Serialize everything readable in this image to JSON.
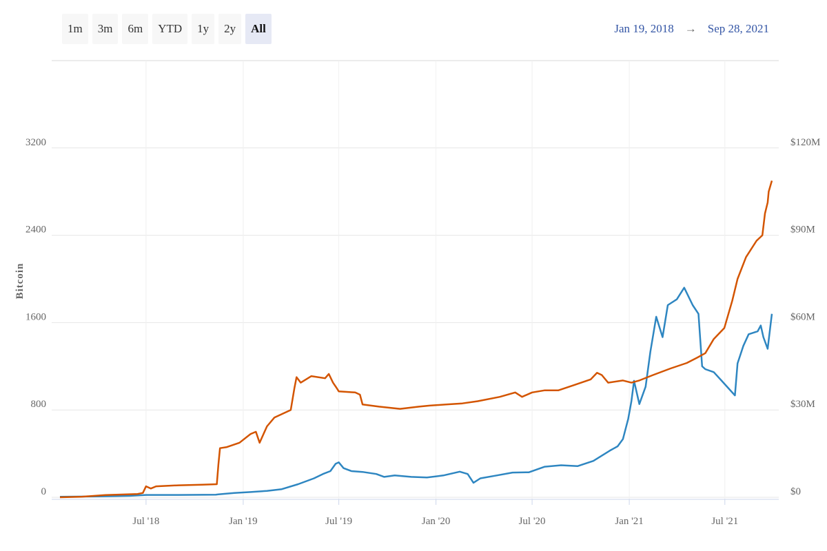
{
  "toolbar": {
    "ranges": [
      "1m",
      "3m",
      "6m",
      "YTD",
      "1y",
      "2y",
      "All"
    ],
    "active_range": "All"
  },
  "date_range": {
    "start": "Jan 19, 2018",
    "arrow": "→",
    "end": "Sep 28, 2021"
  },
  "chart_data": {
    "type": "line",
    "title": "",
    "xlabel": "",
    "ylabel": "Bitcoin",
    "xlim": [
      "2018-01-19",
      "2021-09-28"
    ],
    "x_ticks": [
      {
        "date": "2018-07-01",
        "label": "Jul '18"
      },
      {
        "date": "2019-01-01",
        "label": "Jan '19"
      },
      {
        "date": "2019-07-01",
        "label": "Jul '19"
      },
      {
        "date": "2020-01-01",
        "label": "Jan '20"
      },
      {
        "date": "2020-07-01",
        "label": "Jul '20"
      },
      {
        "date": "2021-01-01",
        "label": "Jan '21"
      },
      {
        "date": "2021-07-01",
        "label": "Jul '21"
      }
    ],
    "y_left": {
      "ylim": [
        0,
        4000
      ],
      "ticks": [
        0,
        800,
        1600,
        2400,
        3200
      ],
      "tick_labels": [
        "0",
        "800",
        "1600",
        "2400",
        "3200"
      ]
    },
    "y_right": {
      "ylim": [
        0,
        150
      ],
      "unit": "millions USD",
      "ticks": [
        0,
        30,
        60,
        90,
        120
      ],
      "tick_labels": [
        "$0",
        "$30M",
        "$60M",
        "$90M",
        "$120M"
      ]
    },
    "grid": true,
    "series": [
      {
        "axis": "left",
        "color": "#d35400",
        "points": [
          [
            "2018-01-19",
            0
          ],
          [
            "2018-03-01",
            5
          ],
          [
            "2018-04-15",
            20
          ],
          [
            "2018-06-15",
            30
          ],
          [
            "2018-06-25",
            40
          ],
          [
            "2018-07-01",
            100
          ],
          [
            "2018-07-10",
            80
          ],
          [
            "2018-07-20",
            100
          ],
          [
            "2018-09-01",
            110
          ],
          [
            "2018-10-15",
            115
          ],
          [
            "2018-11-12",
            120
          ],
          [
            "2018-11-15",
            300
          ],
          [
            "2018-11-18",
            450
          ],
          [
            "2018-12-01",
            460
          ],
          [
            "2018-12-25",
            500
          ],
          [
            "2019-01-15",
            580
          ],
          [
            "2019-01-25",
            600
          ],
          [
            "2019-02-01",
            500
          ],
          [
            "2019-02-15",
            650
          ],
          [
            "2019-03-01",
            730
          ],
          [
            "2019-04-01",
            800
          ],
          [
            "2019-04-08",
            1000
          ],
          [
            "2019-04-12",
            1100
          ],
          [
            "2019-04-20",
            1050
          ],
          [
            "2019-05-10",
            1110
          ],
          [
            "2019-06-05",
            1090
          ],
          [
            "2019-06-12",
            1130
          ],
          [
            "2019-06-20",
            1050
          ],
          [
            "2019-06-27",
            1000
          ],
          [
            "2019-07-01",
            970
          ],
          [
            "2019-08-01",
            960
          ],
          [
            "2019-08-10",
            940
          ],
          [
            "2019-08-15",
            850
          ],
          [
            "2019-09-15",
            830
          ],
          [
            "2019-10-25",
            810
          ],
          [
            "2019-11-30",
            830
          ],
          [
            "2019-12-20",
            840
          ],
          [
            "2020-01-20",
            850
          ],
          [
            "2020-02-20",
            860
          ],
          [
            "2020-03-20",
            880
          ],
          [
            "2020-05-01",
            920
          ],
          [
            "2020-05-30",
            960
          ],
          [
            "2020-06-12",
            920
          ],
          [
            "2020-07-01",
            960
          ],
          [
            "2020-07-25",
            980
          ],
          [
            "2020-08-20",
            980
          ],
          [
            "2020-09-20",
            1030
          ],
          [
            "2020-10-20",
            1080
          ],
          [
            "2020-11-01",
            1140
          ],
          [
            "2020-11-10",
            1120
          ],
          [
            "2020-11-22",
            1050
          ],
          [
            "2020-12-20",
            1070
          ],
          [
            "2021-01-05",
            1050
          ],
          [
            "2021-01-20",
            1070
          ],
          [
            "2021-02-15",
            1120
          ],
          [
            "2021-03-20",
            1180
          ],
          [
            "2021-04-20",
            1230
          ],
          [
            "2021-05-10",
            1280
          ],
          [
            "2021-05-25",
            1320
          ],
          [
            "2021-06-10",
            1450
          ],
          [
            "2021-06-30",
            1550
          ],
          [
            "2021-07-15",
            1800
          ],
          [
            "2021-07-25",
            2000
          ],
          [
            "2021-08-10",
            2200
          ],
          [
            "2021-08-30",
            2350
          ],
          [
            "2021-09-10",
            2400
          ],
          [
            "2021-09-15",
            2600
          ],
          [
            "2021-09-20",
            2700
          ],
          [
            "2021-09-22",
            2800
          ],
          [
            "2021-09-28",
            2900
          ]
        ]
      },
      {
        "axis": "right",
        "color": "#2e86c1",
        "points": [
          [
            "2018-01-19",
            0.2
          ],
          [
            "2018-04-01",
            0.3
          ],
          [
            "2018-06-01",
            0.5
          ],
          [
            "2018-07-01",
            0.8
          ],
          [
            "2018-09-01",
            0.8
          ],
          [
            "2018-11-10",
            0.9
          ],
          [
            "2018-11-15",
            1.0
          ],
          [
            "2018-12-15",
            1.5
          ],
          [
            "2019-01-15",
            1.8
          ],
          [
            "2019-02-15",
            2.2
          ],
          [
            "2019-03-15",
            2.8
          ],
          [
            "2019-04-15",
            4.5
          ],
          [
            "2019-05-15",
            6.5
          ],
          [
            "2019-06-01",
            8.0
          ],
          [
            "2019-06-15",
            9.0
          ],
          [
            "2019-06-25",
            11.5
          ],
          [
            "2019-07-01",
            12.0
          ],
          [
            "2019-07-10",
            10.0
          ],
          [
            "2019-07-25",
            9.0
          ],
          [
            "2019-08-15",
            8.7
          ],
          [
            "2019-09-10",
            8.0
          ],
          [
            "2019-09-25",
            7.0
          ],
          [
            "2019-10-15",
            7.5
          ],
          [
            "2019-11-15",
            7.0
          ],
          [
            "2019-12-15",
            6.8
          ],
          [
            "2020-01-15",
            7.5
          ],
          [
            "2020-02-15",
            8.8
          ],
          [
            "2020-03-01",
            8.0
          ],
          [
            "2020-03-12",
            5.0
          ],
          [
            "2020-03-25",
            6.5
          ],
          [
            "2020-04-25",
            7.5
          ],
          [
            "2020-05-25",
            8.5
          ],
          [
            "2020-06-25",
            8.6
          ],
          [
            "2020-07-25",
            10.5
          ],
          [
            "2020-08-25",
            11.0
          ],
          [
            "2020-09-25",
            10.7
          ],
          [
            "2020-10-25",
            12.5
          ],
          [
            "2020-11-25",
            16.0
          ],
          [
            "2020-12-10",
            17.5
          ],
          [
            "2020-12-20",
            20.0
          ],
          [
            "2020-12-30",
            27.0
          ],
          [
            "2021-01-05",
            33.0
          ],
          [
            "2021-01-10",
            40.0
          ],
          [
            "2021-01-20",
            32.0
          ],
          [
            "2021-02-01",
            38.0
          ],
          [
            "2021-02-10",
            50.0
          ],
          [
            "2021-02-21",
            62.0
          ],
          [
            "2021-03-05",
            55.0
          ],
          [
            "2021-03-15",
            66.0
          ],
          [
            "2021-04-01",
            68.0
          ],
          [
            "2021-04-15",
            72.0
          ],
          [
            "2021-05-01",
            66.0
          ],
          [
            "2021-05-12",
            63.0
          ],
          [
            "2021-05-19",
            45.0
          ],
          [
            "2021-05-25",
            44.0
          ],
          [
            "2021-06-10",
            43.0
          ],
          [
            "2021-06-25",
            40.0
          ],
          [
            "2021-07-05",
            38.0
          ],
          [
            "2021-07-20",
            35.0
          ],
          [
            "2021-07-25",
            46.0
          ],
          [
            "2021-08-05",
            52.0
          ],
          [
            "2021-08-15",
            56.0
          ],
          [
            "2021-09-01",
            57.0
          ],
          [
            "2021-09-07",
            59.0
          ],
          [
            "2021-09-12",
            55.0
          ],
          [
            "2021-09-20",
            51.0
          ],
          [
            "2021-09-28",
            63.0
          ]
        ]
      }
    ]
  }
}
